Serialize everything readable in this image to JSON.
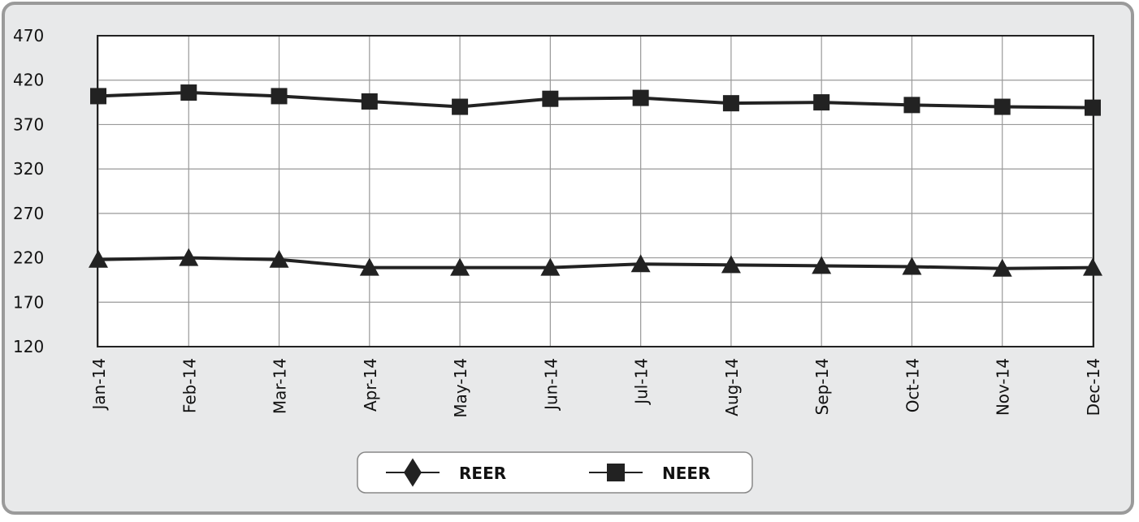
{
  "chart_data": {
    "type": "line",
    "categories": [
      "Jan-14",
      "Feb-14",
      "Mar-14",
      "Apr-14",
      "May-14",
      "Jun-14",
      "Jul-14",
      "Aug-14",
      "Sep-14",
      "Oct-14",
      "Nov-14",
      "Dec-14"
    ],
    "series": [
      {
        "name": "REER",
        "color": "#222222",
        "marker": "triangle",
        "legend_marker": "diamond",
        "values": [
          218,
          220,
          218,
          209,
          209,
          209,
          213,
          212,
          211,
          210,
          208,
          209
        ]
      },
      {
        "name": "NEER",
        "color": "#222222",
        "marker": "square",
        "legend_marker": "square",
        "values": [
          402,
          406,
          402,
          396,
          390,
          399,
          400,
          394,
          395,
          392,
          390,
          389
        ]
      }
    ],
    "ylim": [
      120,
      470
    ],
    "yticks": [
      120,
      170,
      220,
      270,
      320,
      370,
      420,
      470
    ],
    "grid": true
  }
}
